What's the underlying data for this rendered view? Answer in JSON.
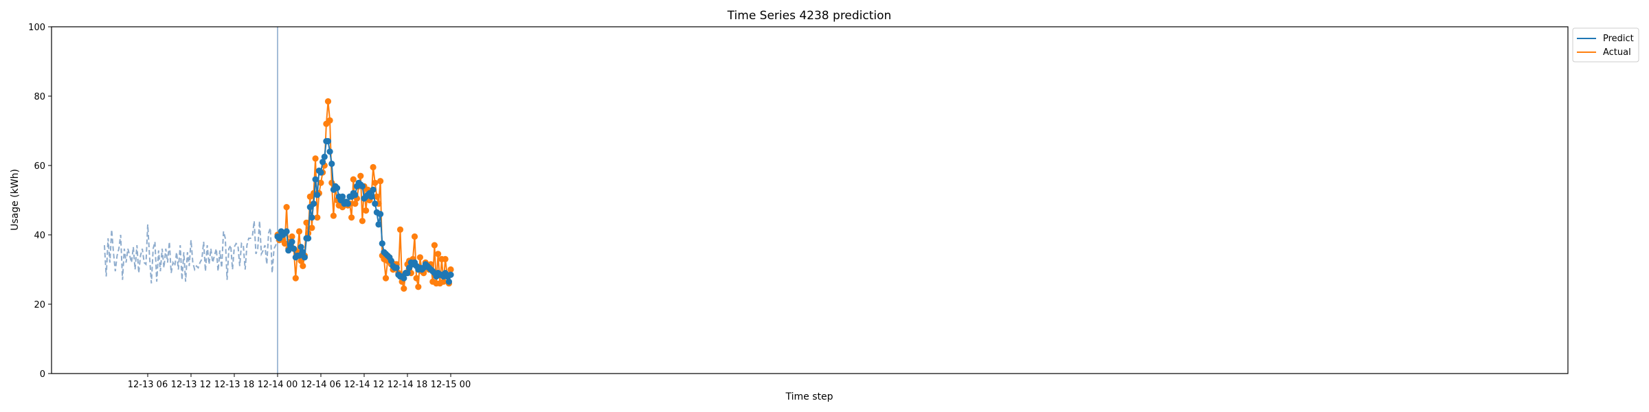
{
  "chart_data": {
    "type": "line",
    "title": "Time Series 4238 prediction",
    "xlabel": "Time step",
    "ylabel": "Usage (kWh)",
    "ylim": [
      0,
      100
    ],
    "yticks": [
      0,
      20,
      40,
      60,
      80,
      100
    ],
    "x_tick_labels": [
      "12-13 06",
      "12-13 12",
      "12-13 18",
      "12-14 00",
      "12-14 06",
      "12-14 12",
      "12-14 18",
      "12-15 00"
    ],
    "legend_position": "top-right (outside plot)",
    "grid": false,
    "colors": {
      "history": "#8eaccd",
      "predict": "#1f77b4",
      "actual": "#ff7f0e",
      "split_line": "#8eaccd"
    },
    "history": {
      "start_hours": 0,
      "end_hours": 24,
      "values": [
        37.0,
        28.0,
        39.0,
        32.0,
        41.5,
        35.0,
        29.5,
        34.0,
        36.0,
        40.0,
        27.0,
        36.0,
        32.0,
        36.0,
        34.0,
        32.0,
        36.5,
        30.0,
        37.0,
        29.0,
        34.0,
        36.0,
        32.0,
        31.5,
        43.0,
        34.0,
        26.0,
        36.0,
        38.0,
        26.5,
        35.5,
        29.5,
        36.0,
        30.5,
        36.0,
        32.0,
        38.0,
        29.0,
        32.0,
        31.0,
        35.0,
        30.0,
        37.0,
        27.0,
        35.0,
        26.5,
        35.0,
        31.0,
        38.5,
        32.0,
        30.0,
        31.0,
        30.5,
        32.0,
        33.0,
        38.0,
        29.5,
        37.0,
        31.5,
        36.0,
        32.0,
        34.0,
        36.0,
        29.5,
        35.5,
        30.5,
        41.0,
        39.0,
        27.0,
        36.0,
        37.0,
        30.0,
        36.5,
        37.5,
        37.0,
        31.0,
        37.5,
        37.0,
        30.0,
        37.0,
        39.0,
        39.0,
        39.5,
        44.0,
        34.5,
        36.0,
        44.0,
        34.5,
        35.5,
        37.0,
        31.5,
        40.5,
        42.0,
        29.0,
        36.0,
        37.0,
        40.0
      ]
    },
    "forecast": {
      "start_hours": 24,
      "step_hours": 0.25,
      "series": [
        {
          "name": "Predict",
          "values": [
            39.5,
            39.0,
            41.0,
            40.0,
            40.5,
            41.0,
            35.5,
            37.0,
            38.0,
            36.0,
            33.5,
            34.0,
            34.0,
            36.5,
            35.0,
            33.5,
            39.0,
            39.0,
            48.0,
            45.0,
            49.0,
            56.0,
            51.5,
            58.5,
            58.0,
            61.0,
            62.5,
            67.0,
            67.0,
            64.0,
            60.5,
            53.0,
            54.0,
            53.5,
            51.0,
            50.0,
            51.0,
            49.0,
            49.5,
            49.0,
            51.0,
            51.0,
            52.0,
            51.5,
            54.0,
            55.0,
            54.5,
            54.0,
            50.5,
            51.0,
            51.5,
            52.0,
            51.0,
            53.0,
            49.0,
            46.5,
            43.0,
            46.0,
            37.5,
            35.0,
            34.5,
            34.0,
            33.5,
            32.5,
            31.0,
            30.5,
            30.5,
            28.5,
            28.0,
            28.0,
            27.5,
            29.0,
            29.0,
            30.5,
            32.0,
            31.5,
            32.0,
            31.0,
            30.0,
            30.5,
            30.0,
            30.5,
            31.5,
            31.0,
            30.5,
            30.0,
            29.5,
            29.0,
            28.0,
            29.0,
            28.5,
            28.5,
            28.0,
            29.0,
            28.0,
            26.5,
            28.5
          ]
        },
        {
          "name": "Actual",
          "values": [
            40.0,
            38.5,
            40.0,
            38.5,
            37.5,
            48.0,
            36.0,
            38.0,
            39.5,
            36.0,
            27.5,
            35.0,
            41.0,
            32.5,
            31.0,
            34.0,
            43.5,
            40.5,
            51.0,
            42.0,
            52.0,
            62.0,
            45.0,
            52.0,
            55.0,
            58.0,
            60.0,
            72.0,
            78.5,
            73.0,
            55.0,
            45.5,
            54.0,
            50.0,
            48.5,
            49.5,
            48.0,
            49.5,
            49.0,
            48.5,
            49.0,
            45.0,
            56.0,
            49.0,
            50.5,
            54.0,
            57.0,
            44.0,
            54.0,
            47.0,
            53.0,
            50.0,
            51.0,
            59.5,
            55.0,
            51.0,
            49.0,
            55.5,
            34.0,
            33.0,
            27.5,
            32.5,
            33.5,
            31.5,
            30.0,
            31.5,
            31.5,
            29.0,
            41.5,
            26.5,
            24.5,
            29.0,
            31.5,
            32.5,
            29.0,
            33.0,
            39.5,
            27.5,
            25.0,
            33.5,
            29.5,
            29.0,
            32.0,
            30.5,
            30.0,
            31.5,
            26.5,
            37.0,
            26.0,
            34.5,
            26.0,
            33.0,
            26.5,
            33.0,
            28.5,
            26.0,
            30.0
          ]
        }
      ]
    }
  }
}
